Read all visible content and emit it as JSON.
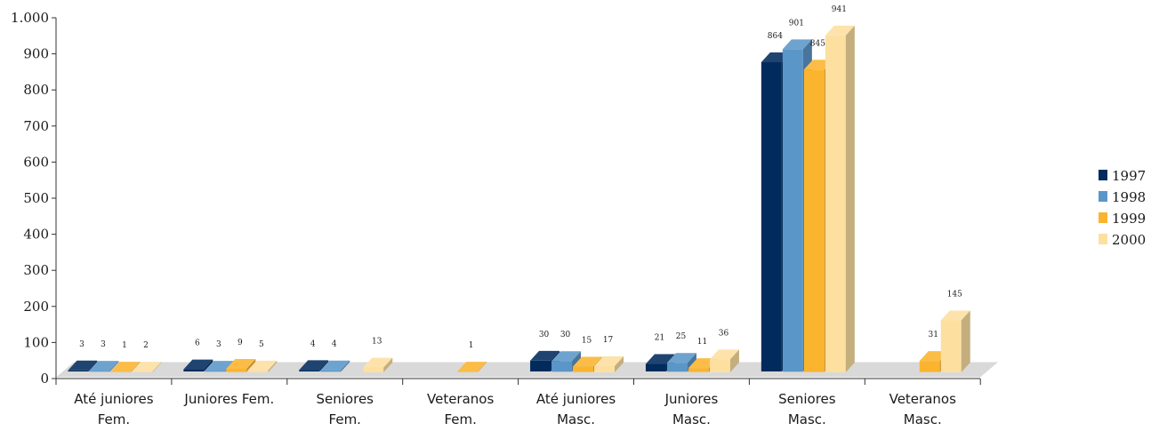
{
  "chart_data": {
    "type": "bar",
    "title": "",
    "xlabel": "",
    "ylabel": "",
    "ylim": [
      0,
      1000
    ],
    "yticks": [
      0,
      100,
      200,
      300,
      400,
      500,
      600,
      700,
      800,
      900,
      1000
    ],
    "ytick_labels": [
      "0",
      "100",
      "200",
      "300",
      "400",
      "500",
      "600",
      "700",
      "800",
      "900",
      "1.000"
    ],
    "categories": [
      [
        "Até juniores",
        "Fem."
      ],
      [
        "Juniores Fem."
      ],
      [
        "Seniores",
        "Fem."
      ],
      [
        "Veteranos",
        "Fem."
      ],
      [
        "Até juniores",
        "Masc."
      ],
      [
        "Juniores",
        "Masc."
      ],
      [
        "Seniores",
        "Masc."
      ],
      [
        "Veteranos",
        "Masc."
      ]
    ],
    "series": [
      {
        "name": "1997",
        "color": "#002B5C",
        "values": [
          3,
          6,
          4,
          null,
          30,
          21,
          864,
          null
        ]
      },
      {
        "name": "1998",
        "color": "#5B96C8",
        "values": [
          3,
          3,
          4,
          null,
          30,
          25,
          901,
          null
        ]
      },
      {
        "name": "1999",
        "color": "#FBB42E",
        "values": [
          1,
          9,
          null,
          1,
          15,
          11,
          845,
          31
        ]
      },
      {
        "name": "2000",
        "color": "#FDDFA0",
        "values": [
          2,
          5,
          13,
          null,
          17,
          36,
          941,
          145
        ]
      }
    ],
    "legend_position": "right",
    "grid": false,
    "style": "3d-bar"
  }
}
